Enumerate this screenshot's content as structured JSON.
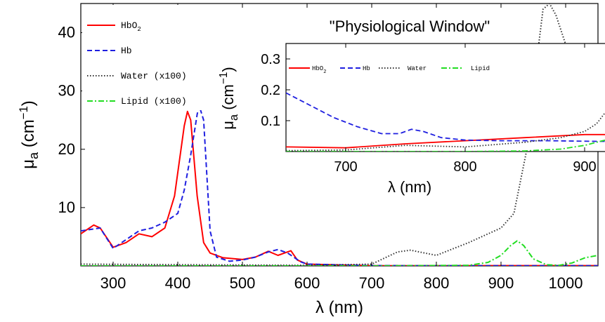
{
  "chart_data": [
    {
      "type": "line",
      "xlabel": "λ (nm)",
      "ylabel": "μa (cm−1)",
      "xlim": [
        250,
        1050
      ],
      "ylim": [
        0,
        45
      ],
      "xticks": [
        300,
        400,
        500,
        600,
        700,
        800,
        900,
        1000
      ],
      "yticks": [
        10,
        20,
        30,
        40
      ],
      "legend_position": "top-left",
      "series": [
        {
          "name": "HbO2",
          "color": "#ff0000",
          "style": "solid",
          "x": [
            250,
            270,
            280,
            300,
            320,
            340,
            360,
            380,
            395,
            400,
            410,
            415,
            420,
            430,
            440,
            450,
            470,
            500,
            520,
            540,
            555,
            565,
            575,
            585,
            600,
            700,
            800,
            900,
            1000,
            1050
          ],
          "y": [
            5.5,
            7.0,
            6.5,
            3.2,
            4.0,
            5.5,
            5.0,
            6.5,
            12,
            16,
            24,
            26.5,
            25,
            12,
            4,
            2.2,
            1.4,
            1.1,
            1.5,
            2.5,
            1.8,
            2.2,
            2.6,
            1.0,
            0.3,
            0.02,
            0.02,
            0.05,
            0.05,
            0.05
          ]
        },
        {
          "name": "Hb",
          "color": "#1f1fe0",
          "style": "dashed",
          "x": [
            250,
            280,
            300,
            320,
            340,
            360,
            380,
            400,
            410,
            420,
            430,
            433,
            440,
            450,
            460,
            480,
            500,
            520,
            540,
            555,
            570,
            590,
            600,
            700,
            800,
            900,
            1000,
            1050
          ],
          "y": [
            6.0,
            6.5,
            3.0,
            4.5,
            6.0,
            6.5,
            7.5,
            9.0,
            13,
            19,
            26,
            27.5,
            25,
            6,
            1.5,
            0.8,
            1.0,
            1.5,
            2.4,
            2.8,
            2.2,
            0.7,
            0.3,
            0.05,
            0.03,
            0.03,
            0.03,
            0.03
          ]
        },
        {
          "name": "Water (x100)",
          "color": "#333333",
          "style": "dotted",
          "x": [
            250,
            400,
            600,
            700,
            740,
            760,
            800,
            850,
            880,
            900,
            920,
            940,
            955,
            965,
            975,
            985,
            1000
          ],
          "y": [
            0.3,
            0.2,
            0.1,
            0.3,
            2.4,
            2.7,
            1.8,
            4.0,
            5.5,
            6.5,
            9.0,
            20,
            35,
            44,
            45,
            43,
            38
          ]
        },
        {
          "name": "Lipid (x100)",
          "color": "#22dd22",
          "style": "dashdot",
          "x": [
            250,
            700,
            850,
            880,
            900,
            915,
            925,
            935,
            950,
            970,
            990,
            1010,
            1030,
            1050
          ],
          "y": [
            0,
            0,
            0.1,
            0.6,
            1.8,
            3.5,
            4.3,
            3.5,
            1.2,
            0.2,
            0.1,
            0.5,
            1.4,
            1.8
          ]
        }
      ]
    },
    {
      "type": "line",
      "title": "\"Physiological Window\"",
      "xlabel": "λ (nm)",
      "ylabel": "μa (cm−1)",
      "xlim": [
        650,
        950
      ],
      "ylim": [
        0,
        0.35
      ],
      "xticks": [
        700,
        800,
        900
      ],
      "yticks": [
        0.1,
        0.2,
        0.3
      ],
      "legend_position": "top",
      "series": [
        {
          "name": "HbO2",
          "color": "#ff0000",
          "style": "solid",
          "x": [
            650,
            700,
            750,
            800,
            850,
            900,
            950
          ],
          "y": [
            0.015,
            0.012,
            0.025,
            0.035,
            0.045,
            0.055,
            0.055
          ]
        },
        {
          "name": "Hb",
          "color": "#1f1fe0",
          "style": "dashed",
          "x": [
            650,
            670,
            690,
            710,
            730,
            745,
            755,
            765,
            780,
            800,
            830,
            870,
            910,
            950
          ],
          "y": [
            0.19,
            0.15,
            0.11,
            0.08,
            0.058,
            0.058,
            0.072,
            0.065,
            0.045,
            0.037,
            0.035,
            0.035,
            0.033,
            0.033
          ]
        },
        {
          "name": "Water",
          "color": "#333333",
          "style": "dotted",
          "x": [
            650,
            700,
            750,
            800,
            850,
            880,
            900,
            910,
            920,
            930,
            940,
            950
          ],
          "y": [
            0.003,
            0.005,
            0.02,
            0.015,
            0.03,
            0.045,
            0.065,
            0.09,
            0.14,
            0.21,
            0.29,
            0.37
          ]
        },
        {
          "name": "Lipid",
          "color": "#22dd22",
          "style": "dashdot",
          "x": [
            650,
            800,
            850,
            880,
            900,
            915,
            925,
            935,
            950
          ],
          "y": [
            0,
            0,
            0.002,
            0.008,
            0.02,
            0.035,
            0.043,
            0.035,
            0.015
          ]
        }
      ]
    }
  ]
}
